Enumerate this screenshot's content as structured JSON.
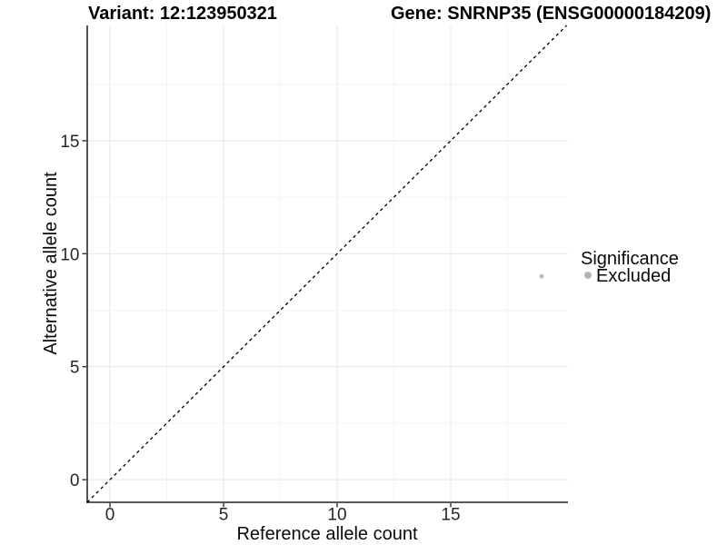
{
  "header": {
    "variant_title": "Variant: 12:123950321",
    "gene_title": "Gene: SNRNP35 (ENSG00000184209)"
  },
  "chart_data": {
    "type": "scatter",
    "title": "Variant: 12:123950321 | Gene: SNRNP35 (ENSG00000184209)",
    "xlabel": "Reference allele count",
    "ylabel": "Alternative allele count",
    "xlim": [
      -1,
      20.16
    ],
    "ylim": [
      -1,
      20.1
    ],
    "x_ticks": [
      0,
      5,
      10,
      15
    ],
    "y_ticks": [
      0,
      5,
      10,
      15
    ],
    "x_minor_ticks": [
      2.5,
      7.5,
      12.5,
      17.5
    ],
    "y_minor_ticks": [
      2.5,
      7.5,
      12.5,
      17.5
    ],
    "grid": "major+minor",
    "legend_position": "right",
    "identity_line": {
      "type": "abline",
      "slope": 1,
      "intercept": 0,
      "style": "dashed",
      "color": "#000000"
    },
    "series": [
      {
        "name": "Excluded",
        "color": "#bdbdbd",
        "point_radius": 2.5,
        "points": [
          {
            "x": 19,
            "y": 9
          }
        ]
      }
    ],
    "legend": {
      "title": "Significance",
      "entries": [
        {
          "label": "Excluded",
          "color": "#b3b3b3"
        }
      ]
    },
    "style": {
      "axis_line_color": "#404040",
      "tick_color": "#333333",
      "grid_major_color": "#e9e9e9",
      "grid_minor_color": "#f4f4f4",
      "background": "#ffffff"
    }
  }
}
